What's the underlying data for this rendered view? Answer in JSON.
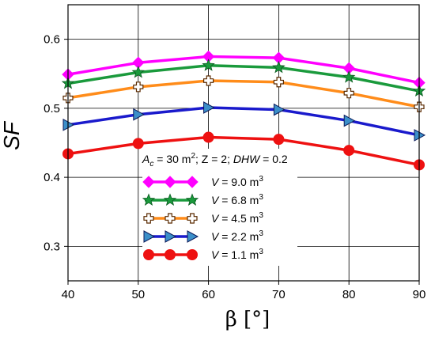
{
  "chart_data": {
    "type": "line",
    "xlabel": "β [°]",
    "ylabel": "SF",
    "xlim": [
      40,
      90
    ],
    "ylim": [
      0.25,
      0.65
    ],
    "xticks": [
      "40",
      "50",
      "60",
      "70",
      "80",
      "90"
    ],
    "yticks": [
      "0.3",
      "0.4",
      "0.5",
      "0.6"
    ],
    "grid": true,
    "annotation": {
      "a": "A",
      "a_sub": "c",
      "a_val": " = 30 m",
      "a_sup": "2",
      "z": ";  Z = 2;  ",
      "dhw": "DHW",
      "dhw_val": " = 0.2"
    },
    "x": [
      40,
      50,
      60,
      70,
      80,
      90
    ],
    "series": [
      {
        "name": "V = 9.0 m3",
        "label_v": "V",
        "label_rest": " = 9.0 m",
        "label_sup": "3",
        "color": "#ff00ff",
        "marker": "diamond",
        "values": [
          0.549,
          0.566,
          0.575,
          0.573,
          0.558,
          0.537
        ]
      },
      {
        "name": "V = 6.8 m3",
        "label_v": "V",
        "label_rest": " = 6.8 m",
        "label_sup": "3",
        "color": "#1a9a3c",
        "marker": "star",
        "values": [
          0.536,
          0.552,
          0.562,
          0.559,
          0.545,
          0.525
        ]
      },
      {
        "name": "V = 4.5 m3",
        "label_v": "V",
        "label_rest": " = 4.5 m",
        "label_sup": "3",
        "color": "#ff8c1a",
        "marker": "plus",
        "values": [
          0.515,
          0.531,
          0.54,
          0.538,
          0.522,
          0.502
        ]
      },
      {
        "name": "V = 2.2 m3",
        "label_v": "V",
        "label_rest": " = 2.2 m",
        "label_sup": "3",
        "color": "#1a1acc",
        "marker": "triangle",
        "values": [
          0.476,
          0.491,
          0.501,
          0.498,
          0.482,
          0.461
        ]
      },
      {
        "name": "V = 1.1 m3",
        "label_v": "V",
        "label_rest": " = 1.1 m",
        "label_sup": "3",
        "color": "#ee1111",
        "marker": "circle",
        "values": [
          0.434,
          0.449,
          0.458,
          0.455,
          0.439,
          0.418
        ]
      }
    ]
  }
}
